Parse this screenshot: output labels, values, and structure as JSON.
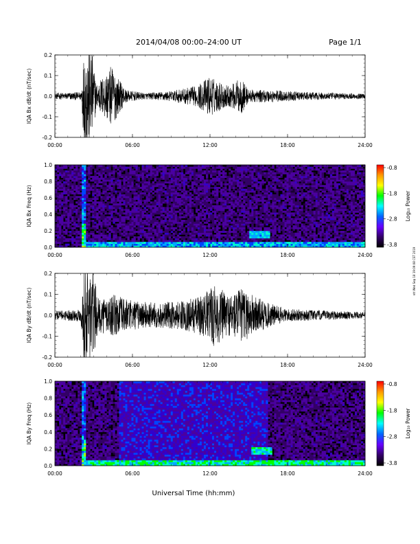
{
  "header": {
    "title": "2014/04/08   00:00–24:00 UT",
    "page": "Page 1/1"
  },
  "footer": {
    "xlabel": "Universal Time (hh:mm)",
    "stamp": "ntt Wed Sep 18 19:09:08 CST 2019"
  },
  "colorbar": {
    "label": "Log₁₀ Power",
    "ticks": [
      "-0.8",
      "-1.8",
      "-2.8",
      "-3.8"
    ],
    "stops": [
      "#ff0000",
      "#ff9900",
      "#ffff00",
      "#00ff00",
      "#00ffff",
      "#0066ff",
      "#6600ff",
      "#330066",
      "#000000"
    ]
  },
  "chart_data": [
    {
      "type": "line",
      "title": "",
      "ylabel": "IQA Bx dB/dt (nT/sec)",
      "xlabel": "",
      "xlim": [
        0,
        24
      ],
      "ylim": [
        -0.2,
        0.2
      ],
      "x_ticks": [
        "00:00",
        "06:00",
        "12:00",
        "18:00",
        "24:00"
      ],
      "y_ticks": [
        "-0.2",
        "-0.1",
        "0.0",
        "0.1",
        "0.2"
      ],
      "color": "#000000",
      "envelope": [
        {
          "t": 0.0,
          "amp": 0.015
        },
        {
          "t": 2.0,
          "amp": 0.02
        },
        {
          "t": 2.3,
          "amp": 0.25
        },
        {
          "t": 2.8,
          "amp": 0.25
        },
        {
          "t": 3.2,
          "amp": 0.06
        },
        {
          "t": 4.4,
          "amp": 0.15
        },
        {
          "t": 5.0,
          "amp": 0.08
        },
        {
          "t": 5.5,
          "amp": 0.03
        },
        {
          "t": 7.0,
          "amp": 0.015
        },
        {
          "t": 9.0,
          "amp": 0.025
        },
        {
          "t": 11.0,
          "amp": 0.05
        },
        {
          "t": 12.0,
          "amp": 0.1
        },
        {
          "t": 12.4,
          "amp": 0.08
        },
        {
          "t": 13.5,
          "amp": 0.05
        },
        {
          "t": 14.4,
          "amp": 0.09
        },
        {
          "t": 15.0,
          "amp": 0.03
        },
        {
          "t": 17.0,
          "amp": 0.03
        },
        {
          "t": 19.0,
          "amp": 0.02
        },
        {
          "t": 24.0,
          "amp": 0.012
        }
      ]
    },
    {
      "type": "heatmap",
      "title": "",
      "ylabel": "IQA Bx Freq (Hz)",
      "xlabel": "",
      "xlim": [
        0,
        24
      ],
      "ylim": [
        0.0,
        1.0
      ],
      "x_ticks": [
        "00:00",
        "06:00",
        "12:00",
        "18:00",
        "24:00"
      ],
      "y_ticks": [
        "0.0",
        "0.2",
        "0.4",
        "0.6",
        "0.8",
        "1.0"
      ],
      "colorbar_range": [
        -3.8,
        -0.8
      ],
      "features": [
        {
          "kind": "burst",
          "t": 2.3,
          "level": 0.8
        },
        {
          "kind": "lowband",
          "t_start": 2.3,
          "t_end": 24,
          "level": 0.4
        },
        {
          "kind": "patch",
          "t": 15.8,
          "f": 0.16,
          "level": 0.45
        }
      ]
    },
    {
      "type": "line",
      "title": "",
      "ylabel": "IQA By dB/dt (nT/sec)",
      "xlabel": "",
      "xlim": [
        0,
        24
      ],
      "ylim": [
        -0.2,
        0.2
      ],
      "x_ticks": [
        "00:00",
        "06:00",
        "12:00",
        "18:00",
        "24:00"
      ],
      "y_ticks": [
        "-0.2",
        "-0.1",
        "0.0",
        "0.1",
        "0.2"
      ],
      "color": "#000000",
      "envelope": [
        {
          "t": 0.0,
          "amp": 0.02
        },
        {
          "t": 2.0,
          "amp": 0.03
        },
        {
          "t": 2.3,
          "amp": 0.25
        },
        {
          "t": 2.9,
          "amp": 0.25
        },
        {
          "t": 3.3,
          "amp": 0.08
        },
        {
          "t": 4.5,
          "amp": 0.1
        },
        {
          "t": 6.0,
          "amp": 0.07
        },
        {
          "t": 8.0,
          "amp": 0.06
        },
        {
          "t": 10.0,
          "amp": 0.07
        },
        {
          "t": 11.5,
          "amp": 0.1
        },
        {
          "t": 12.3,
          "amp": 0.15
        },
        {
          "t": 13.5,
          "amp": 0.1
        },
        {
          "t": 14.4,
          "amp": 0.13
        },
        {
          "t": 16.5,
          "amp": 0.06
        },
        {
          "t": 18.0,
          "amp": 0.03
        },
        {
          "t": 24.0,
          "amp": 0.015
        }
      ]
    },
    {
      "type": "heatmap",
      "title": "",
      "ylabel": "IQA By Freq (Hz)",
      "xlabel": "",
      "xlim": [
        0,
        24
      ],
      "ylim": [
        0.0,
        1.0
      ],
      "x_ticks": [
        "00:00",
        "06:00",
        "12:00",
        "18:00",
        "24:00"
      ],
      "y_ticks": [
        "0.0",
        "0.2",
        "0.4",
        "0.6",
        "0.8",
        "1.0"
      ],
      "colorbar_range": [
        -3.8,
        -0.8
      ],
      "features": [
        {
          "kind": "burst",
          "t": 2.3,
          "level": 0.8
        },
        {
          "kind": "broadband",
          "t_start": 5.0,
          "t_end": 16.5,
          "level": 0.35
        },
        {
          "kind": "lowband",
          "t_start": 2.3,
          "t_end": 24,
          "level": 0.5
        },
        {
          "kind": "patch",
          "t": 16.0,
          "f": 0.18,
          "level": 0.5
        }
      ]
    }
  ]
}
